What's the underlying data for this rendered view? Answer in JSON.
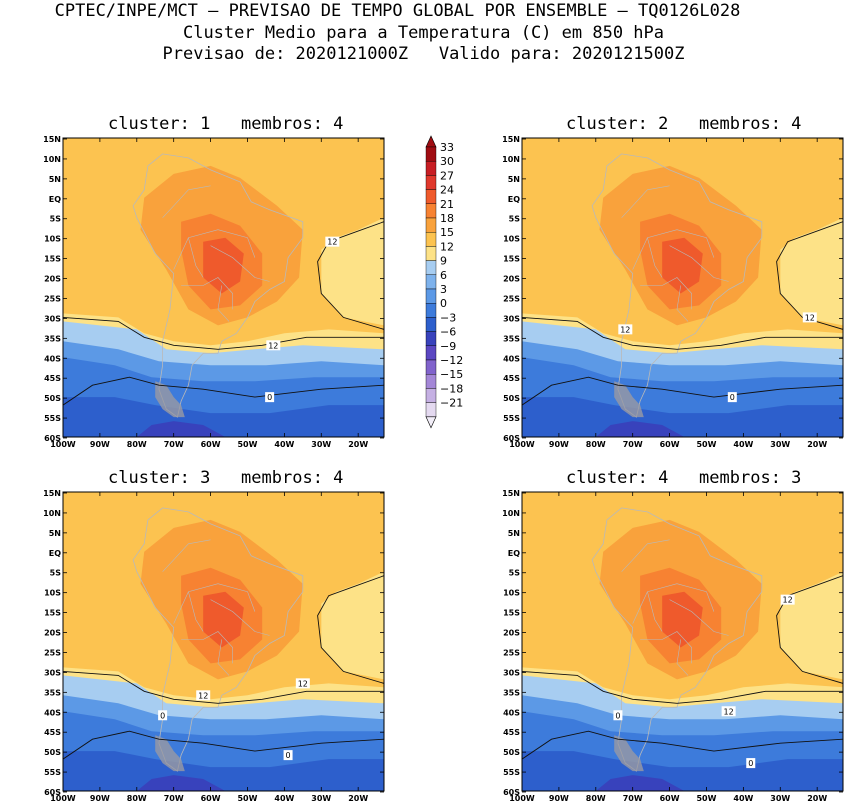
{
  "header": {
    "line1": "CPTEC/INPE/MCT – PREVISAO DE TEMPO GLOBAL POR ENSEMBLE – TQ0126L028",
    "line2": "Cluster Medio para a Temperatura (C) em 850 hPa",
    "line3": "Previsao de: 2020121000Z   Valido para: 2020121500Z"
  },
  "axes": {
    "lat_labels": [
      "15N",
      "10N",
      "5N",
      "EQ",
      "5S",
      "10S",
      "15S",
      "20S",
      "25S",
      "30S",
      "35S",
      "40S",
      "45S",
      "50S",
      "55S",
      "60S"
    ],
    "lon_labels": [
      "100W",
      "90W",
      "80W",
      "70W",
      "60W",
      "50W",
      "40W",
      "30W",
      "20W"
    ]
  },
  "colorbar": {
    "levels": [
      "33",
      "30",
      "27",
      "24",
      "21",
      "18",
      "15",
      "12",
      "9",
      "6",
      "3",
      "0",
      "-3",
      "-6",
      "-9",
      "-12",
      "-15",
      "-18",
      "-21"
    ],
    "colors": [
      "#a00d12",
      "#c81e24",
      "#e0382c",
      "#ef5a2c",
      "#f78232",
      "#f9a23c",
      "#fcc350",
      "#fde287",
      "#a7cdf1",
      "#7eb2ec",
      "#5c99e6",
      "#3d7bdb",
      "#2d5fcc",
      "#3842bc",
      "#5b47c2",
      "#8163cc",
      "#a487d7",
      "#c5b0e3",
      "#e4d9f0"
    ]
  },
  "panels": [
    {
      "title": "cluster: 1   membros: 4",
      "contour_labels": [
        {
          "text": "12",
          "lon": -43,
          "lat": -37
        },
        {
          "text": "12",
          "lon": -27,
          "lat": -11
        },
        {
          "text": "0",
          "lon": -44,
          "lat": -50
        }
      ]
    },
    {
      "title": "cluster: 2   membros: 4",
      "contour_labels": [
        {
          "text": "12",
          "lon": -72,
          "lat": -33
        },
        {
          "text": "12",
          "lon": -22,
          "lat": -30
        },
        {
          "text": "0",
          "lon": -43,
          "lat": -50
        }
      ]
    },
    {
      "title": "cluster: 3   membros: 4",
      "contour_labels": [
        {
          "text": "12",
          "lon": -62,
          "lat": -36
        },
        {
          "text": "12",
          "lon": -35,
          "lat": -33
        },
        {
          "text": "0",
          "lon": -73,
          "lat": -41
        },
        {
          "text": "0",
          "lon": -39,
          "lat": -51
        }
      ]
    },
    {
      "title": "cluster: 4   membros: 3",
      "contour_labels": [
        {
          "text": "12",
          "lon": -28,
          "lat": -12
        },
        {
          "text": "12",
          "lon": -44,
          "lat": -40
        },
        {
          "text": "0",
          "lon": -74,
          "lat": -41
        },
        {
          "text": "0",
          "lon": -38,
          "lat": -53
        }
      ]
    }
  ]
}
